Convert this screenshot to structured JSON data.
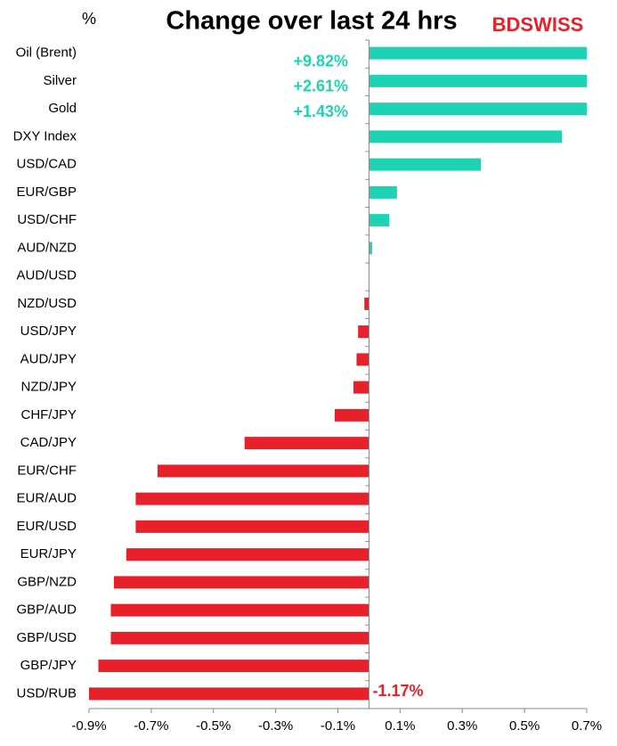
{
  "chart_data": {
    "type": "hbar",
    "title": "Change over last 24 hrs",
    "unit_label": "%",
    "logo": "BDSWISS",
    "categories": [
      "Oil (Brent)",
      "Silver",
      "Gold",
      "DXY Index",
      "USD/CAD",
      "EUR/GBP",
      "USD/CHF",
      "AUD/NZD",
      "AUD/USD",
      "NZD/USD",
      "USD/JPY",
      "AUD/JPY",
      "NZD/JPY",
      "CHF/JPY",
      "CAD/JPY",
      "EUR/CHF",
      "EUR/AUD",
      "EUR/USD",
      "EUR/JPY",
      "GBP/NZD",
      "GBP/AUD",
      "GBP/USD",
      "GBP/JPY",
      "USD/RUB"
    ],
    "values": [
      9.82,
      2.61,
      1.43,
      0.62,
      0.36,
      0.09,
      0.065,
      0.01,
      0,
      -0.015,
      -0.035,
      -0.04,
      -0.05,
      -0.11,
      -0.4,
      -0.68,
      -0.75,
      -0.75,
      -0.78,
      -0.82,
      -0.83,
      -0.83,
      -0.87,
      -1.17
    ],
    "value_labels": [
      "+9.82%",
      "+2.61%",
      "+1.43%",
      null,
      null,
      null,
      null,
      null,
      null,
      null,
      null,
      null,
      null,
      null,
      null,
      null,
      null,
      null,
      null,
      null,
      null,
      null,
      null,
      "-1.17%"
    ],
    "positive_color": "#1ed3b4",
    "negative_color": "#e8202a",
    "xlim": [
      -0.9,
      0.7
    ],
    "xticks": [
      {
        "value": -0.9,
        "label": "-0.9%"
      },
      {
        "value": -0.7,
        "label": "-0.7%"
      },
      {
        "value": -0.5,
        "label": "-0.5%"
      },
      {
        "value": -0.3,
        "label": "-0.3%"
      },
      {
        "value": -0.1,
        "label": "-0.1%"
      },
      {
        "value": 0.1,
        "label": "0.1%"
      },
      {
        "value": 0.3,
        "label": "0.3%"
      },
      {
        "value": 0.5,
        "label": "0.5%"
      },
      {
        "value": 0.7,
        "label": "0.7%"
      }
    ],
    "grid": false
  }
}
